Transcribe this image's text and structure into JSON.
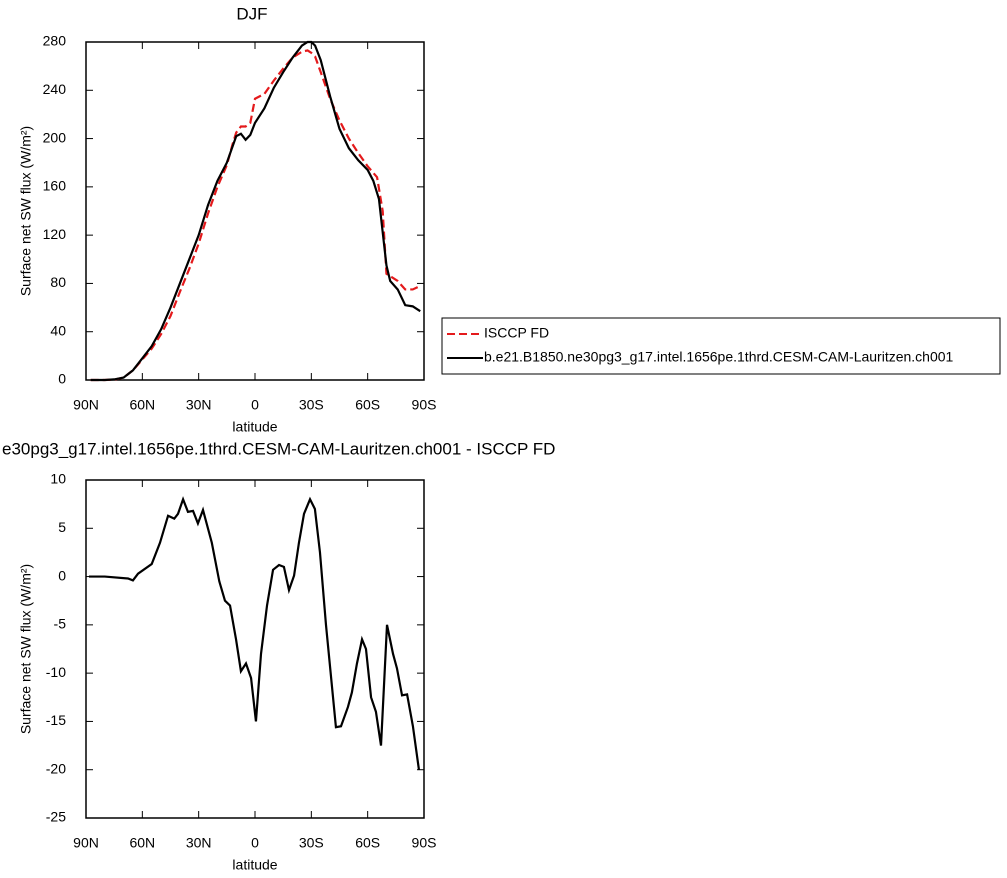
{
  "chart_data": [
    {
      "type": "line",
      "title": "DJF",
      "x_label": "latitude",
      "y_label": "Surface net SW flux (W/m²)",
      "xlim": [
        90,
        -90
      ],
      "ylim": [
        0,
        280
      ],
      "xticks": [
        {
          "value": 90,
          "label": "90N"
        },
        {
          "value": 60,
          "label": "60N"
        },
        {
          "value": 30,
          "label": "30N"
        },
        0,
        {
          "value": -30,
          "label": "30S"
        },
        {
          "value": -60,
          "label": "60S"
        },
        {
          "value": -90,
          "label": "90S"
        }
      ],
      "yticks": [
        0,
        40,
        80,
        120,
        160,
        200,
        240,
        280
      ],
      "legend": "right",
      "series": [
        {
          "name": "ISCCP FD",
          "color": "#e41a1c",
          "linestyle": "dashed",
          "x": [
            87.5,
            80,
            75,
            70,
            65,
            60,
            55,
            50,
            45,
            40,
            35,
            30,
            25,
            20,
            15,
            12,
            10,
            7.5,
            5,
            2.5,
            1,
            0,
            -5,
            -10,
            -15,
            -20,
            -25,
            -28,
            -30,
            -32,
            -35,
            -40,
            -45,
            -50,
            -55,
            -60,
            -65,
            -68,
            -70,
            -76,
            -80,
            -84,
            -88
          ],
          "values": [
            0,
            0,
            0.3,
            2,
            8,
            17,
            26,
            38,
            53,
            73,
            92,
            113,
            138,
            160,
            178,
            195,
            205,
            210,
            210,
            213,
            225,
            233,
            237,
            248,
            258,
            267,
            272,
            273,
            271,
            268,
            255,
            233,
            215,
            200,
            188,
            177,
            168,
            140,
            88,
            82,
            75,
            75,
            78
          ]
        },
        {
          "name": "b.e21.B1850.ne30pg3_g17.intel.1656pe.1thrd.CESM-CAM-Lauritzen.ch001",
          "color": "#000000",
          "linestyle": "solid",
          "x": [
            87.5,
            80,
            75,
            70,
            65,
            60,
            55,
            50,
            45,
            40,
            35,
            30,
            25,
            20,
            15,
            10,
            7.5,
            5,
            2.5,
            0,
            -5,
            -10,
            -15,
            -20,
            -25,
            -28,
            -30,
            -32,
            -35,
            -40,
            -45,
            -50,
            -55,
            -60,
            -63,
            -66,
            -70,
            -72,
            -76,
            -80,
            -84,
            -88
          ],
          "values": [
            0,
            0,
            0.5,
            2,
            8,
            18,
            28,
            42,
            60,
            80,
            100,
            120,
            145,
            165,
            180,
            202,
            204,
            199,
            203,
            213,
            225,
            242,
            255,
            267,
            277,
            280,
            280,
            277,
            265,
            235,
            208,
            192,
            182,
            174,
            165,
            150,
            95,
            82,
            75,
            62,
            61,
            57
          ]
        }
      ]
    },
    {
      "type": "line",
      "title": "e30pg3_g17.intel.1656pe.1thrd.CESM-CAM-Lauritzen.ch001 - ISCCP FD",
      "x_label": "latitude",
      "y_label": "Surface net SW flux (W/m²)",
      "xlim": [
        90,
        -90
      ],
      "ylim": [
        -25,
        10
      ],
      "xticks": [
        {
          "value": 90,
          "label": "90N"
        },
        {
          "value": 60,
          "label": "60N"
        },
        {
          "value": 30,
          "label": "30N"
        },
        0,
        {
          "value": -30,
          "label": "30S"
        },
        {
          "value": -60,
          "label": "60S"
        },
        {
          "value": -90,
          "label": "90S"
        }
      ],
      "yticks": [
        -25,
        -20,
        -15,
        -10,
        -5,
        0,
        5,
        10
      ],
      "series": [
        {
          "color": "#000000",
          "linestyle": "solid",
          "x": [
            88.4,
            80,
            67.6,
            65,
            62.3,
            55,
            50.6,
            46.3,
            43,
            41,
            38.3,
            35.7,
            33,
            30.4,
            27.7,
            23,
            19,
            16,
            13.3,
            10.1,
            7.5,
            4.8,
            2.1,
            -0.5,
            -3.2,
            -6.4,
            -9.6,
            -12.8,
            -15.4,
            -18.1,
            -20.8,
            -23.4,
            -26.1,
            -29.3,
            -31.9,
            -34.6,
            -37.8,
            -43.1,
            -45.8,
            -49.5,
            -51.6,
            -54.3,
            -57,
            -59.1,
            -61.8,
            -64.4,
            -67.1,
            -70.3,
            -73.5,
            -75.6,
            -78.3,
            -81,
            -84.1,
            -87.3
          ],
          "values": [
            0,
            0,
            -0.2,
            -0.4,
            0.3,
            1.3,
            3.5,
            6.3,
            6,
            6.5,
            8,
            6.7,
            6.8,
            5.5,
            6.9,
            3.5,
            -0.5,
            -2.5,
            -3,
            -6.5,
            -9.8,
            -9,
            -10.5,
            -15,
            -8,
            -3,
            0.7,
            1.2,
            1,
            -1.4,
            0.1,
            3.5,
            6.5,
            8,
            7,
            2.5,
            -5,
            -15.6,
            -15.5,
            -13.5,
            -12,
            -9,
            -6.5,
            -7.5,
            -12.5,
            -14,
            -17.5,
            -5,
            -8,
            -9.5,
            -12.3,
            -12.2,
            -15.5,
            -20
          ]
        }
      ]
    }
  ]
}
